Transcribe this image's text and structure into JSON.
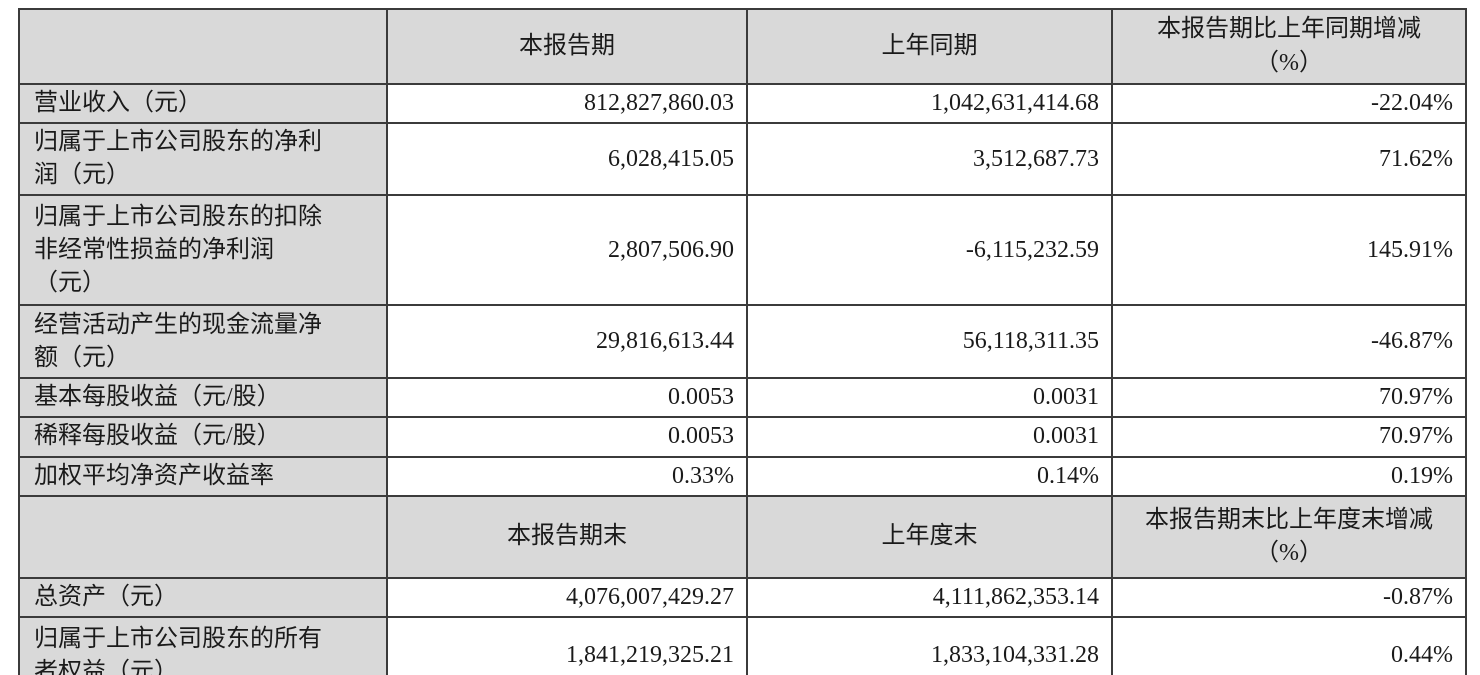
{
  "colors": {
    "header_bg": "#d9d9d9",
    "border": "#3b3b3b",
    "text": "#1a1a1a",
    "data_bg": "#ffffff"
  },
  "sections": [
    {
      "headers": [
        "",
        "本报告期",
        "上年同期",
        "本报告期比上年同期增减\n（%）"
      ],
      "rows": [
        {
          "label": "营业收入（元）",
          "values": [
            "812,827,860.03",
            "1,042,631,414.68",
            "-22.04%"
          ]
        },
        {
          "label": "归属于上市公司股东的净利\n润（元）",
          "values": [
            "6,028,415.05",
            "3,512,687.73",
            "71.62%"
          ]
        },
        {
          "label": "归属于上市公司股东的扣除\n非经常性损益的净利润\n（元）",
          "values": [
            "2,807,506.90",
            "-6,115,232.59",
            "145.91%"
          ]
        },
        {
          "label": "经营活动产生的现金流量净\n额（元）",
          "values": [
            "29,816,613.44",
            "56,118,311.35",
            "-46.87%"
          ]
        },
        {
          "label": "基本每股收益（元/股）",
          "values": [
            "0.0053",
            "0.0031",
            "70.97%"
          ]
        },
        {
          "label": "稀释每股收益（元/股）",
          "values": [
            "0.0053",
            "0.0031",
            "70.97%"
          ]
        },
        {
          "label": "加权平均净资产收益率",
          "values": [
            "0.33%",
            "0.14%",
            "0.19%"
          ]
        }
      ]
    },
    {
      "headers": [
        "",
        "本报告期末",
        "上年度末",
        "本报告期末比上年度末增减\n（%）"
      ],
      "rows": [
        {
          "label": "总资产（元）",
          "values": [
            "4,076,007,429.27",
            "4,111,862,353.14",
            "-0.87%"
          ]
        },
        {
          "label": "归属于上市公司股东的所有\n者权益（元）",
          "values": [
            "1,841,219,325.21",
            "1,833,104,331.28",
            "0.44%"
          ]
        }
      ]
    }
  ]
}
